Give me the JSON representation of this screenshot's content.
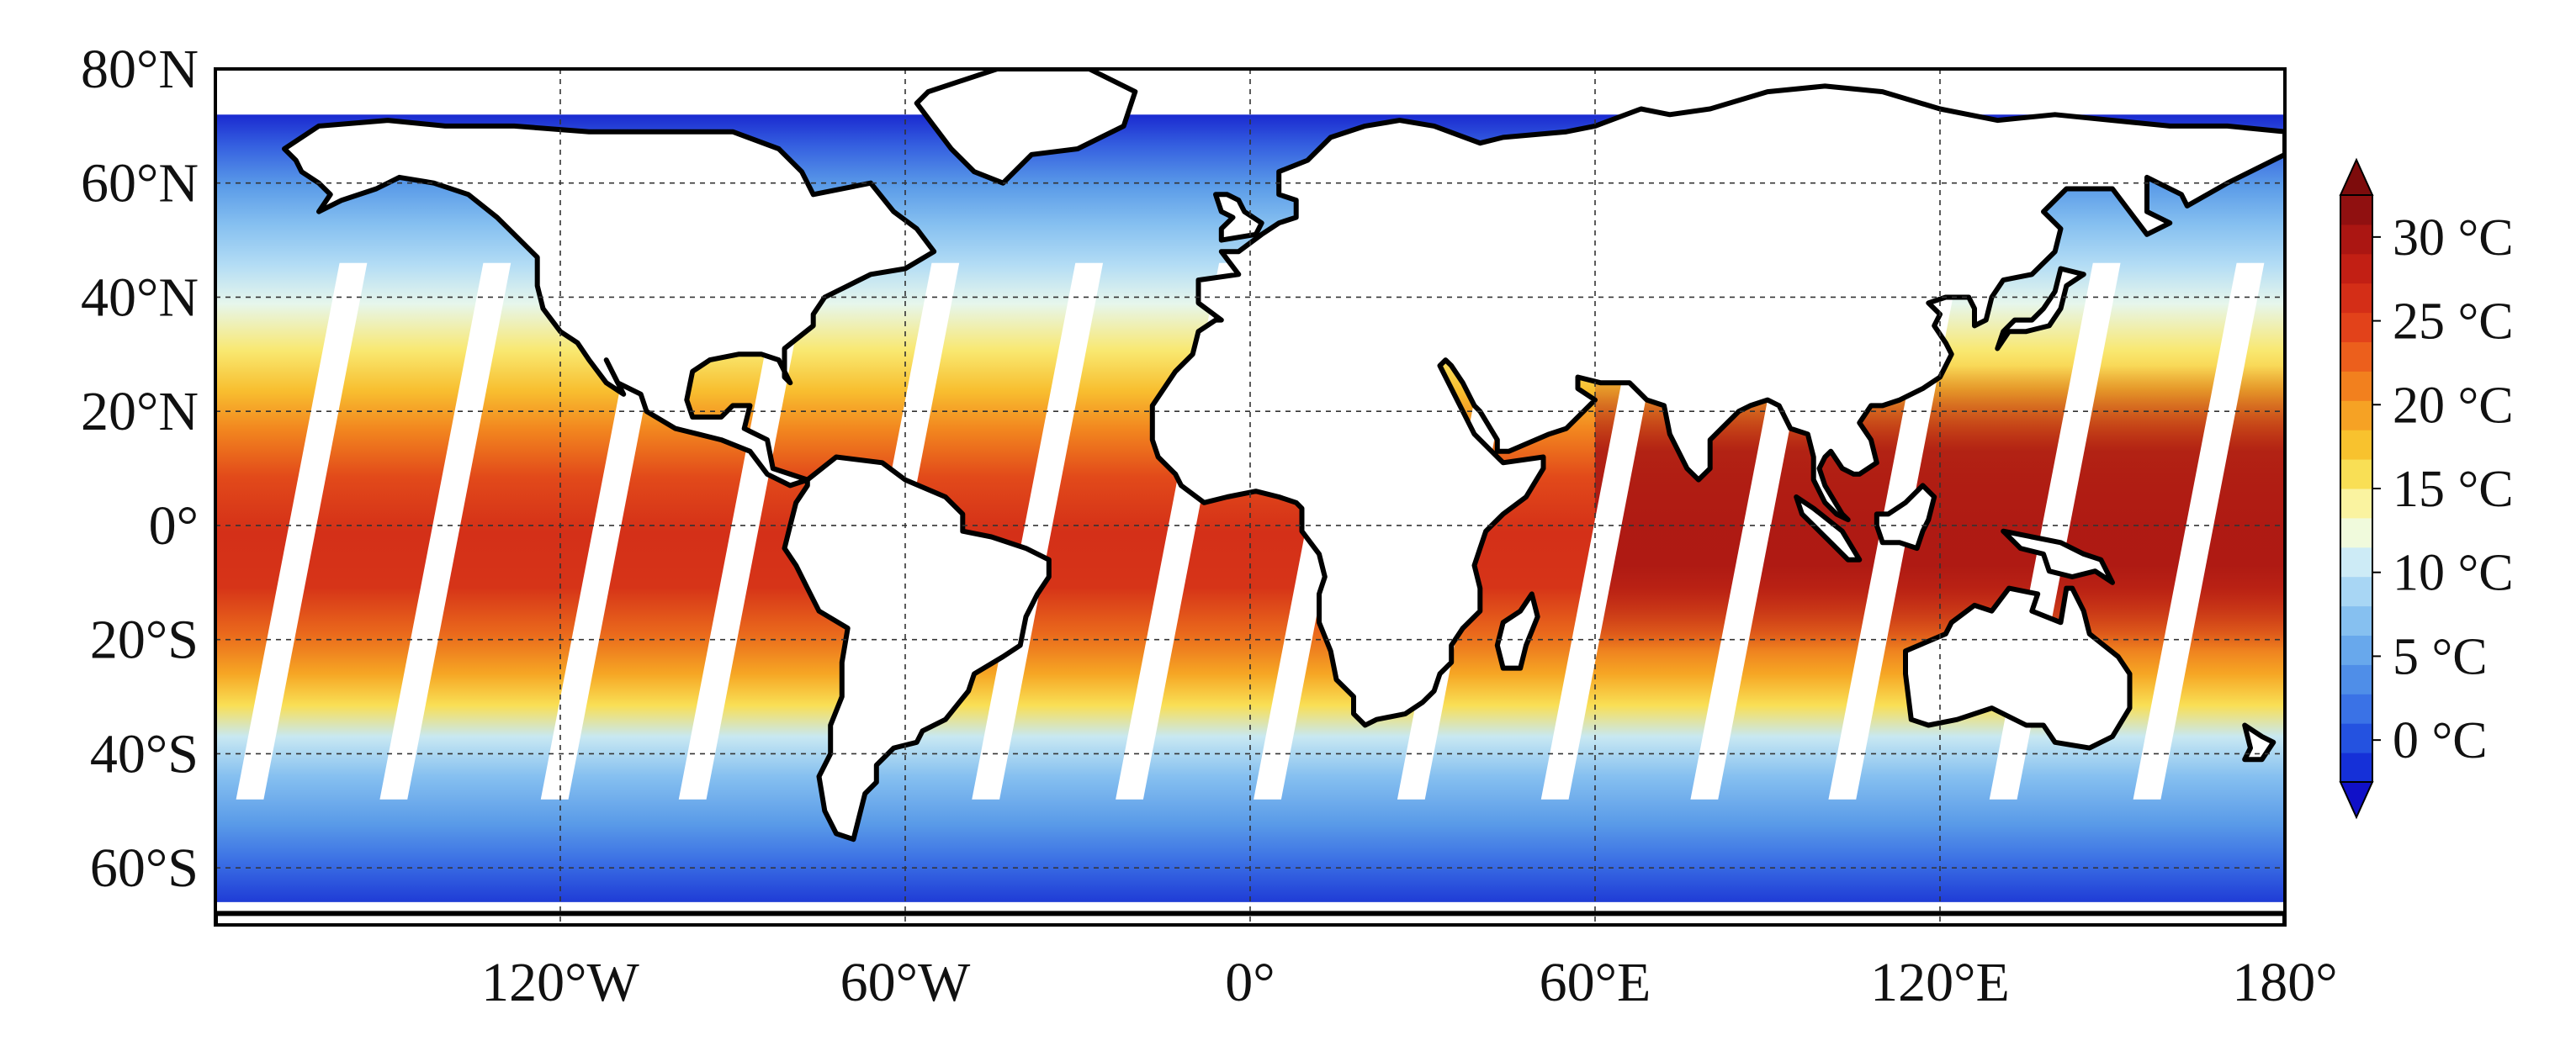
{
  "map": {
    "projection": "equirectangular",
    "lon_range": [
      -180,
      180
    ],
    "lat_range": [
      -70,
      80
    ],
    "grid": "dashed",
    "lat_ticks": [
      {
        "lat": 80,
        "label": "80°N"
      },
      {
        "lat": 60,
        "label": "60°N"
      },
      {
        "lat": 40,
        "label": "40°N"
      },
      {
        "lat": 20,
        "label": "20°N"
      },
      {
        "lat": 0,
        "label": "0°"
      },
      {
        "lat": -20,
        "label": "20°S"
      },
      {
        "lat": -40,
        "label": "40°S"
      },
      {
        "lat": -60,
        "label": "60°S"
      }
    ],
    "lon_ticks": [
      {
        "lon": -120,
        "label": "120°W"
      },
      {
        "lon": -60,
        "label": "60°W"
      },
      {
        "lon": 0,
        "label": "0°"
      },
      {
        "lon": 60,
        "label": "60°E"
      },
      {
        "lon": 120,
        "label": "120°E"
      },
      {
        "lon": 180,
        "label": "180°"
      }
    ],
    "swath_gap_lons_at_equator": [
      -165,
      -140,
      -112,
      -88,
      -62,
      -37,
      -12,
      12,
      37,
      62,
      88,
      112,
      140,
      165
    ],
    "land_color": "#ffffff",
    "coast_color": "#000000"
  },
  "colorbar": {
    "min": -2.5,
    "max": 32.5,
    "extend": "both",
    "placement": "right",
    "ticks": [
      {
        "value": 30,
        "label": "30 °C"
      },
      {
        "value": 25,
        "label": "25 °C"
      },
      {
        "value": 20,
        "label": "20 °C"
      },
      {
        "value": 15,
        "label": "15 °C"
      },
      {
        "value": 10,
        "label": "10 °C"
      },
      {
        "value": 5,
        "label": "5 °C"
      },
      {
        "value": 0,
        "label": "0 °C"
      }
    ],
    "colors": [
      "#1530d8",
      "#2452e0",
      "#3a72e6",
      "#4f8ee8",
      "#68a8ec",
      "#86c0f0",
      "#a8d6f4",
      "#cdebf6",
      "#f0fadc",
      "#faf3a0",
      "#f9df55",
      "#f8c22e",
      "#f6a224",
      "#f2801e",
      "#ec5f1c",
      "#e2421a",
      "#d42e17",
      "#c21f14",
      "#ab1612",
      "#901010"
    ],
    "arrow_low_color": "#1010c8",
    "arrow_high_color": "#7d0c0c"
  }
}
